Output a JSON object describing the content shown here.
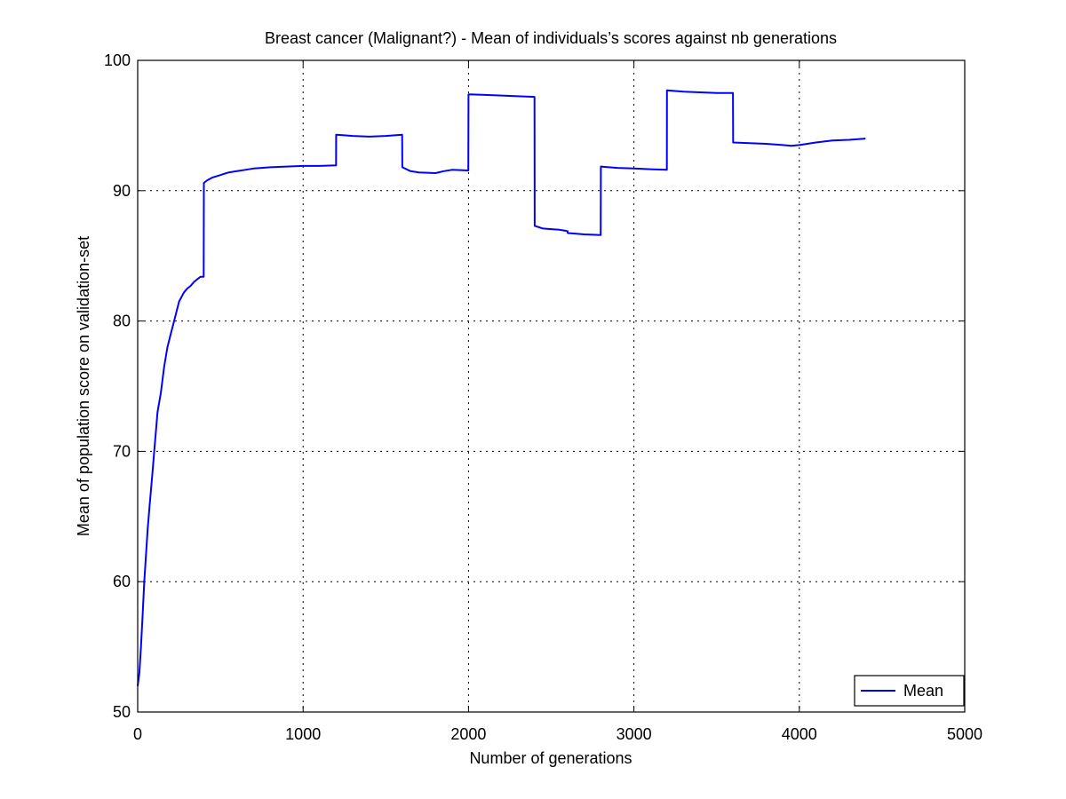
{
  "chart_data": {
    "type": "line",
    "title": "Breast cancer (Malignant?) - Mean of individuals’s scores against nb generations",
    "xlabel": "Number of generations",
    "ylabel": "Mean of population score on validation-set",
    "xlim": [
      0,
      5000
    ],
    "ylim": [
      50,
      100
    ],
    "xticks": [
      0,
      1000,
      2000,
      3000,
      4000,
      5000
    ],
    "yticks": [
      50,
      60,
      70,
      80,
      90,
      100
    ],
    "grid": true,
    "legend_position": "bottom-right",
    "series": [
      {
        "name": "Mean",
        "color": "#0000ff",
        "x": [
          0,
          10,
          20,
          30,
          40,
          50,
          60,
          70,
          80,
          90,
          100,
          120,
          140,
          160,
          180,
          200,
          220,
          250,
          280,
          300,
          320,
          340,
          360,
          380,
          399,
          400,
          420,
          450,
          500,
          550,
          600,
          650,
          700,
          750,
          800,
          900,
          1000,
          1100,
          1199,
          1200,
          1300,
          1400,
          1500,
          1599,
          1600,
          1650,
          1700,
          1800,
          1850,
          1900,
          1999,
          2000,
          2100,
          2200,
          2399,
          2400,
          2450,
          2500,
          2550,
          2599,
          2600,
          2700,
          2799,
          2800,
          2900,
          3000,
          3100,
          3199,
          3200,
          3300,
          3400,
          3500,
          3599,
          3600,
          3700,
          3800,
          3900,
          3950,
          4000,
          4100,
          4200,
          4300,
          4400
        ],
        "y": [
          52,
          53,
          55,
          57.5,
          60,
          62,
          64,
          65.5,
          67,
          68.5,
          70,
          73,
          74.5,
          76.5,
          78,
          79,
          80,
          81.5,
          82.2,
          82.5,
          82.7,
          83,
          83.2,
          83.4,
          83.4,
          90.6,
          90.8,
          91,
          91.2,
          91.4,
          91.5,
          91.6,
          91.7,
          91.75,
          91.8,
          91.85,
          91.9,
          91.9,
          91.95,
          94.3,
          94.2,
          94.15,
          94.2,
          94.3,
          91.8,
          91.5,
          91.4,
          91.35,
          91.5,
          91.6,
          91.55,
          97.4,
          97.35,
          97.3,
          97.2,
          87.3,
          87.1,
          87.05,
          87,
          86.9,
          86.75,
          86.65,
          86.6,
          91.85,
          91.75,
          91.7,
          91.65,
          91.6,
          97.7,
          97.6,
          97.55,
          97.5,
          97.5,
          93.7,
          93.65,
          93.6,
          93.5,
          93.45,
          93.5,
          93.7,
          93.85,
          93.9,
          94
        ]
      }
    ]
  }
}
